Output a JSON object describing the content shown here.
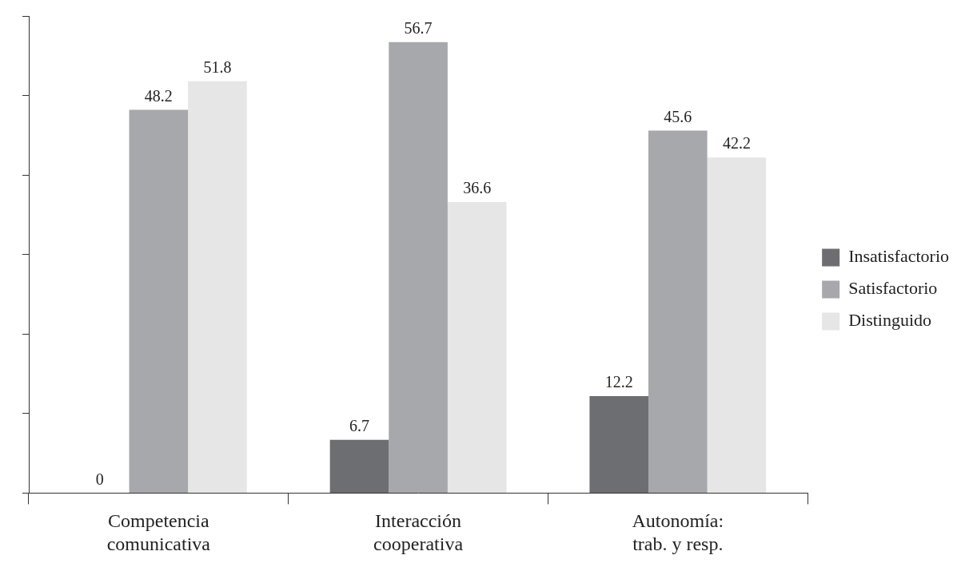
{
  "chart_data": {
    "type": "bar",
    "categories": [
      "Competencia\ncomunicativa",
      "Interacción\ncooperativa",
      "Autonomía:\ntrab. y resp."
    ],
    "series": [
      {
        "name": "Insatisfactorio",
        "color": "#6d6e71",
        "values": [
          0,
          6.7,
          12.2
        ]
      },
      {
        "name": "Satisfactorio",
        "color": "#a7a8ab",
        "values": [
          48.2,
          56.7,
          45.6
        ]
      },
      {
        "name": "Distinguido",
        "color": "#e6e6e7",
        "values": [
          51.8,
          36.6,
          42.2
        ]
      }
    ],
    "ylim": [
      0,
      60
    ],
    "yticks": [
      0,
      10,
      20,
      30,
      40,
      50,
      60
    ],
    "grid": false,
    "legend": "right",
    "data_labels": true,
    "tick_labels": "x"
  }
}
